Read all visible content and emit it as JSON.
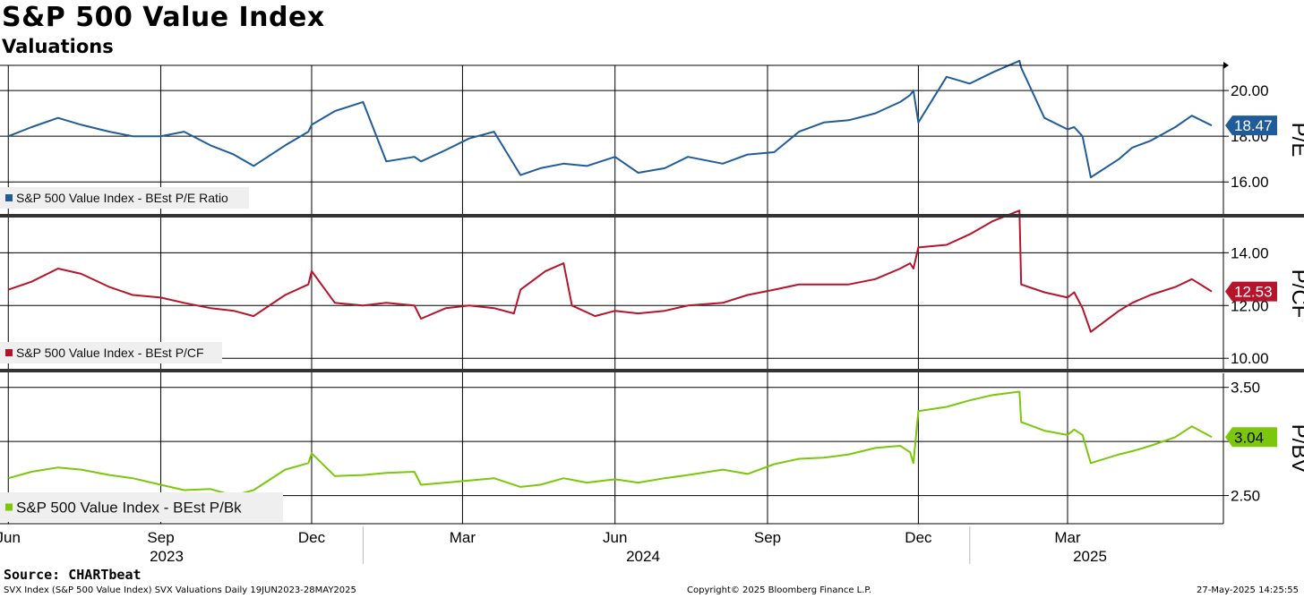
{
  "header": {
    "title": "S&P 500 Value Index",
    "subtitle": "Valuations"
  },
  "footer": {
    "source": "Source: CHARTbeat",
    "left": "SVX Index (S&P 500 Value Index) SVX Valuations  Daily 19JUN2023-28MAY2025",
    "center": "Copyright© 2025 Bloomberg Finance L.P.",
    "right": "27-May-2025 14:25:55"
  },
  "chart_data": {
    "type": "line",
    "x_axis": {
      "month_ticks": [
        "Jun",
        "Sep",
        "Dec",
        "Mar",
        "Jun",
        "Sep",
        "Dec",
        "Mar"
      ],
      "month_tick_dates": [
        "2023-06-01",
        "2023-09-01",
        "2023-12-01",
        "2024-03-01",
        "2024-06-01",
        "2024-09-01",
        "2024-12-01",
        "2025-03-01"
      ],
      "year_labels": [
        "2023",
        "2024",
        "2025"
      ],
      "range": [
        "2023-05-27",
        "2025-06-03"
      ]
    },
    "grid": true,
    "panels": [
      {
        "axis_label": "P/E",
        "color": "#1f5c99",
        "ylim": [
          14.6,
          21.1
        ],
        "yticks": [
          16,
          18,
          20
        ],
        "ytick_labels": [
          "16.00",
          "18.00",
          "20.00"
        ],
        "last_value": 18.47,
        "last_value_label": "18.47",
        "legend": "S&P 500 Value Index - BEst P/E Ratio",
        "series": {
          "name": "S&P 500 Value Index - BEst P/E Ratio",
          "x": [
            "2023-06-01",
            "2023-06-15",
            "2023-07-01",
            "2023-07-15",
            "2023-08-01",
            "2023-08-15",
            "2023-09-01",
            "2023-09-15",
            "2023-10-01",
            "2023-10-15",
            "2023-10-27",
            "2023-11-15",
            "2023-11-29",
            "2023-12-01",
            "2023-12-15",
            "2024-01-01",
            "2024-01-15",
            "2024-02-01",
            "2024-02-05",
            "2024-02-20",
            "2024-03-05",
            "2024-03-20",
            "2024-04-05",
            "2024-04-17",
            "2024-05-01",
            "2024-05-15",
            "2024-06-01",
            "2024-06-15",
            "2024-07-01",
            "2024-07-15",
            "2024-08-05",
            "2024-08-20",
            "2024-09-05",
            "2024-09-20",
            "2024-10-05",
            "2024-10-20",
            "2024-11-05",
            "2024-11-20",
            "2024-11-26",
            "2024-11-28",
            "2024-12-01",
            "2024-12-18",
            "2025-01-01",
            "2025-01-15",
            "2025-01-31",
            "2025-02-01",
            "2025-02-15",
            "2025-03-01",
            "2025-03-05",
            "2025-03-10",
            "2025-03-15",
            "2025-04-01",
            "2025-04-09",
            "2025-04-20",
            "2025-05-05",
            "2025-05-15",
            "2025-05-27"
          ],
          "values": [
            18.0,
            18.4,
            18.8,
            18.5,
            18.2,
            18.0,
            18.0,
            18.2,
            17.6,
            17.2,
            16.7,
            17.6,
            18.2,
            18.5,
            19.1,
            19.5,
            16.9,
            17.1,
            16.9,
            17.4,
            17.9,
            18.2,
            16.3,
            16.6,
            16.8,
            16.7,
            17.1,
            16.4,
            16.6,
            17.1,
            16.8,
            17.2,
            17.3,
            18.2,
            18.6,
            18.7,
            19.0,
            19.5,
            19.8,
            20.0,
            18.6,
            20.6,
            20.3,
            20.8,
            21.3,
            21.0,
            18.8,
            18.3,
            18.4,
            18.0,
            16.2,
            17.0,
            17.5,
            17.8,
            18.4,
            18.9,
            18.47
          ]
        }
      },
      {
        "axis_label": "P/CF",
        "color": "#b5142b",
        "ylim": [
          9.6,
          15.3
        ],
        "yticks": [
          10,
          12,
          14
        ],
        "ytick_labels": [
          "10.00",
          "12.00",
          "14.00"
        ],
        "last_value": 12.53,
        "last_value_label": "12.53",
        "legend": "S&P 500 Value Index - BEst P/CF",
        "series": {
          "name": "S&P 500 Value Index - BEst P/CF",
          "x": [
            "2023-06-01",
            "2023-06-15",
            "2023-07-01",
            "2023-07-15",
            "2023-08-01",
            "2023-08-15",
            "2023-09-01",
            "2023-09-15",
            "2023-10-01",
            "2023-10-15",
            "2023-10-27",
            "2023-11-15",
            "2023-11-29",
            "2023-12-01",
            "2023-12-15",
            "2024-01-01",
            "2024-01-15",
            "2024-02-01",
            "2024-02-05",
            "2024-02-20",
            "2024-03-05",
            "2024-03-20",
            "2024-04-01",
            "2024-04-05",
            "2024-04-20",
            "2024-05-01",
            "2024-05-06",
            "2024-05-20",
            "2024-06-01",
            "2024-06-15",
            "2024-07-01",
            "2024-07-15",
            "2024-08-05",
            "2024-08-20",
            "2024-09-05",
            "2024-09-20",
            "2024-10-05",
            "2024-10-20",
            "2024-11-05",
            "2024-11-20",
            "2024-11-26",
            "2024-11-28",
            "2024-12-01",
            "2024-12-18",
            "2025-01-01",
            "2025-01-15",
            "2025-01-31",
            "2025-02-01",
            "2025-02-15",
            "2025-03-01",
            "2025-03-05",
            "2025-03-10",
            "2025-03-15",
            "2025-04-01",
            "2025-04-09",
            "2025-04-20",
            "2025-05-05",
            "2025-05-15",
            "2025-05-27"
          ],
          "values": [
            12.6,
            12.9,
            13.4,
            13.2,
            12.7,
            12.4,
            12.3,
            12.1,
            11.9,
            11.8,
            11.6,
            12.4,
            12.8,
            13.3,
            12.1,
            12.0,
            12.1,
            12.0,
            11.5,
            11.9,
            12.0,
            11.9,
            11.7,
            12.6,
            13.3,
            13.6,
            12.0,
            11.6,
            11.8,
            11.7,
            11.8,
            12.0,
            12.1,
            12.4,
            12.6,
            12.8,
            12.8,
            12.8,
            13.0,
            13.4,
            13.6,
            13.4,
            14.2,
            14.3,
            14.7,
            15.2,
            15.6,
            12.8,
            12.5,
            12.3,
            12.5,
            11.9,
            11.0,
            11.8,
            12.1,
            12.4,
            12.7,
            13.0,
            12.53
          ]
        }
      },
      {
        "axis_label": "P/BV",
        "color": "#7ac70c",
        "ylim": [
          2.24,
          3.63
        ],
        "yticks": [
          2.5,
          3.0,
          3.5
        ],
        "ytick_labels": [
          "2.50",
          "",
          "3.50"
        ],
        "last_value": 3.04,
        "last_value_label": "3.04",
        "legend": "S&P 500 Value Index - BEst P/Bk",
        "series": {
          "name": "S&P 500 Value Index - BEst P/Bk",
          "x": [
            "2023-06-01",
            "2023-06-15",
            "2023-07-01",
            "2023-07-15",
            "2023-08-01",
            "2023-08-15",
            "2023-09-01",
            "2023-09-15",
            "2023-10-01",
            "2023-10-15",
            "2023-10-27",
            "2023-11-15",
            "2023-11-29",
            "2023-12-01",
            "2023-12-15",
            "2024-01-01",
            "2024-01-15",
            "2024-02-01",
            "2024-02-05",
            "2024-02-20",
            "2024-03-05",
            "2024-03-20",
            "2024-04-05",
            "2024-04-17",
            "2024-05-01",
            "2024-05-15",
            "2024-06-01",
            "2024-06-15",
            "2024-07-01",
            "2024-07-15",
            "2024-08-05",
            "2024-08-20",
            "2024-09-05",
            "2024-09-20",
            "2024-10-05",
            "2024-10-20",
            "2024-11-05",
            "2024-11-20",
            "2024-11-26",
            "2024-11-28",
            "2024-12-01",
            "2024-12-18",
            "2025-01-01",
            "2025-01-15",
            "2025-01-31",
            "2025-02-01",
            "2025-02-15",
            "2025-03-01",
            "2025-03-05",
            "2025-03-10",
            "2025-03-15",
            "2025-04-01",
            "2025-04-09",
            "2025-04-20",
            "2025-05-05",
            "2025-05-15",
            "2025-05-27"
          ],
          "values": [
            2.66,
            2.72,
            2.76,
            2.74,
            2.69,
            2.66,
            2.6,
            2.55,
            2.56,
            2.5,
            2.55,
            2.74,
            2.8,
            2.89,
            2.68,
            2.69,
            2.71,
            2.72,
            2.6,
            2.62,
            2.64,
            2.66,
            2.58,
            2.6,
            2.66,
            2.62,
            2.65,
            2.62,
            2.66,
            2.69,
            2.74,
            2.7,
            2.79,
            2.84,
            2.85,
            2.88,
            2.94,
            2.96,
            2.9,
            2.8,
            3.28,
            3.32,
            3.38,
            3.43,
            3.46,
            3.18,
            3.1,
            3.06,
            3.11,
            3.06,
            2.8,
            2.88,
            2.91,
            2.96,
            3.04,
            3.14,
            3.04
          ]
        }
      }
    ]
  }
}
